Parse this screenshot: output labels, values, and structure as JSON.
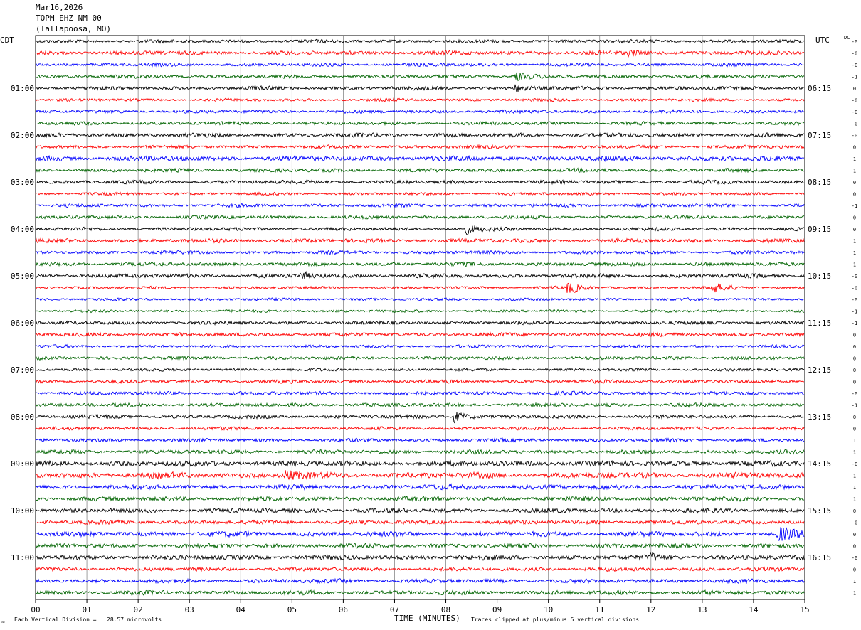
{
  "header": {
    "date": "Mar16,2026",
    "station": "TOPM EHZ NM 00",
    "location": "(Tallapoosa, MO)"
  },
  "timezones": {
    "left": "CDT",
    "right": "UTC"
  },
  "dc_label": "DC",
  "footer": {
    "mark": "≈",
    "scale_text": "Each Vertical Division =   28.57 microvolts",
    "clip_text": "Traces clipped at plus/minus 5 vertical divisions"
  },
  "colors": [
    "#000000",
    "#ff0000",
    "#0000ff",
    "#006400"
  ],
  "chart_data": {
    "type": "line",
    "xlabel": "TIME (MINUTES)",
    "x_ticks": [
      "00",
      "01",
      "02",
      "03",
      "04",
      "05",
      "06",
      "07",
      "08",
      "09",
      "10",
      "11",
      "12",
      "13",
      "14",
      "15"
    ],
    "xlim": [
      0,
      15
    ],
    "traces_per_hour": 4,
    "left_hour_labels": [
      "01:00",
      "02:00",
      "03:00",
      "04:00",
      "05:00",
      "06:00",
      "07:00",
      "08:00",
      "09:00",
      "10:00",
      "11:00"
    ],
    "right_hour_labels": [
      "06:15",
      "07:15",
      "08:15",
      "09:15",
      "10:15",
      "11:15",
      "12:15",
      "13:15",
      "14:15",
      "15:15",
      "16:15"
    ],
    "dc_offsets": [
      "-0",
      "-0",
      "-0",
      "-1",
      "0",
      "-0",
      "-0",
      "-0",
      "-0",
      "0",
      "1",
      "1",
      "0",
      "0",
      "-1",
      "0",
      "0",
      "1",
      "1",
      "1",
      "-0",
      "-0",
      "-0",
      "-1",
      "-1",
      "0",
      "0",
      "0",
      "0",
      "0",
      "-0",
      "-1",
      "0",
      "0",
      "1",
      "1",
      "-0",
      "1",
      "1",
      "1",
      "0",
      "-0",
      "0",
      "0",
      "-0",
      "0",
      "1",
      "1"
    ],
    "amplitudes": [
      2,
      2.4,
      2,
      2,
      2.2,
      1.7,
      2,
      2,
      2.4,
      2,
      3,
      2.2,
      2.2,
      1.7,
      2,
      2,
      2,
      2.4,
      2,
      2.2,
      2.4,
      1.6,
      1.6,
      1.6,
      2,
      2.2,
      1.7,
      2,
      1.7,
      2,
      2.2,
      2.2,
      2.2,
      2,
      2,
      2.4,
      3.2,
      3.4,
      3,
      2.6,
      2.6,
      2.4,
      3,
      2.6,
      2.8,
      2.2,
      2.4,
      2.6
    ],
    "events": [
      {
        "trace": 1,
        "minute": 11.6,
        "strength": 2.2
      },
      {
        "trace": 3,
        "minute": 9.4,
        "strength": 2.6
      },
      {
        "trace": 4,
        "minute": 9.4,
        "strength": 2.0
      },
      {
        "trace": 16,
        "minute": 8.4,
        "strength": 3.0
      },
      {
        "trace": 20,
        "minute": 5.2,
        "strength": 2.2
      },
      {
        "trace": 21,
        "minute": 10.4,
        "strength": 4.0
      },
      {
        "trace": 21,
        "minute": 13.2,
        "strength": 4.0
      },
      {
        "trace": 32,
        "minute": 8.2,
        "strength": 3.6
      },
      {
        "trace": 37,
        "minute": 4.9,
        "strength": 3.4
      },
      {
        "trace": 42,
        "minute": 14.5,
        "strength": 6.0
      },
      {
        "trace": 44,
        "minute": 12.0,
        "strength": 2.0
      }
    ]
  }
}
